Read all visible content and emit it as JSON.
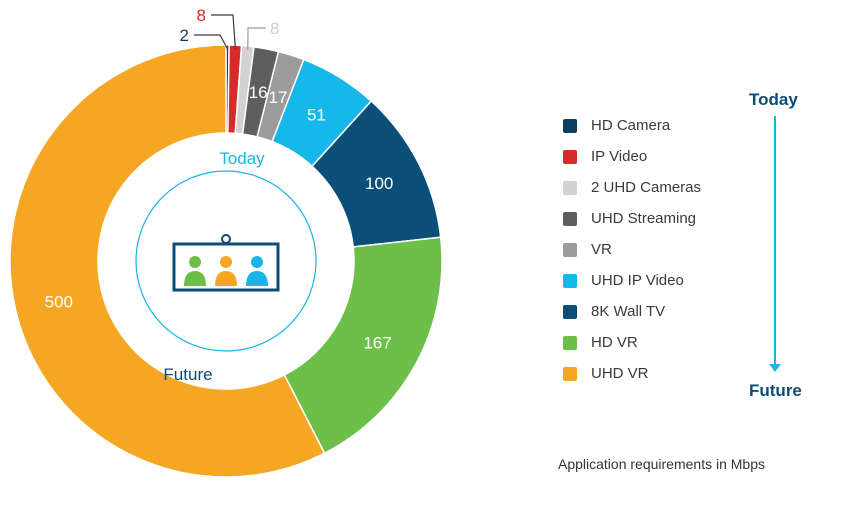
{
  "chart_data": {
    "type": "pie",
    "variant": "donut",
    "categories": [
      "HD Camera",
      "IP Video",
      "2 UHD Cameras",
      "UHD Streaming",
      "VR",
      "UHD IP Video",
      "8K Wall TV",
      "HD VR",
      "UHD VR"
    ],
    "values": [
      2,
      8,
      8,
      16,
      17,
      51,
      100,
      167,
      500
    ],
    "colors": [
      "#0b3f5f",
      "#d52b2b",
      "#d2d2d2",
      "#5e5e5e",
      "#9c9c9c",
      "#16b8ec",
      "#0b4f79",
      "#6cc04a",
      "#f5a623"
    ],
    "data_labels": [
      "2",
      "8",
      "8",
      "16",
      "17",
      "51",
      "100",
      "167",
      "500"
    ],
    "legend_position": "right",
    "inner_label_start": "Today",
    "inner_label_end": "Future",
    "center_icon": "video-conference-icon"
  },
  "timeline": {
    "start_label": "Today",
    "end_label": "Future",
    "color": "#1bb4e6",
    "text_color": "#0b4d78"
  },
  "caption": "Application requirements in Mbps"
}
